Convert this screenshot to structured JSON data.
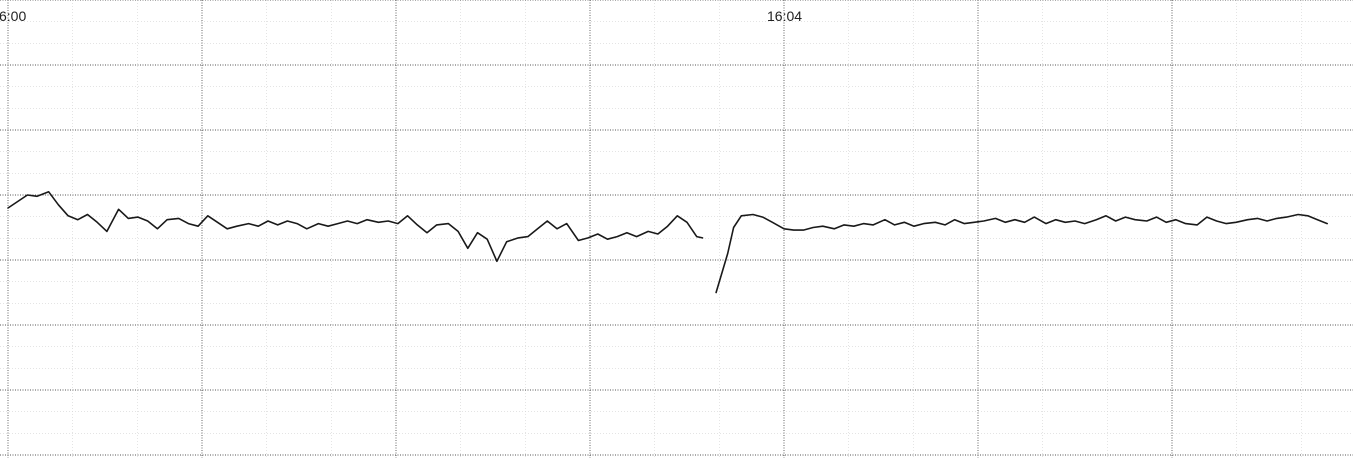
{
  "chart_data": {
    "type": "line",
    "time_labels": [
      {
        "text": "6:00",
        "minute": 0
      },
      {
        "text": "16:04",
        "minute": 4
      }
    ],
    "xlim": [
      0,
      7
    ],
    "ylim": [
      0,
      7
    ],
    "grid": true,
    "line_color": "#1a1a1a",
    "segments": [
      [
        [
          0.0,
          3.8
        ],
        [
          0.05,
          3.9
        ],
        [
          0.1,
          4.0
        ],
        [
          0.15,
          3.98
        ],
        [
          0.21,
          4.05
        ],
        [
          0.26,
          3.85
        ],
        [
          0.31,
          3.68
        ],
        [
          0.36,
          3.62
        ],
        [
          0.41,
          3.7
        ],
        [
          0.46,
          3.58
        ],
        [
          0.51,
          3.44
        ],
        [
          0.57,
          3.78
        ],
        [
          0.62,
          3.64
        ],
        [
          0.67,
          3.66
        ],
        [
          0.72,
          3.6
        ],
        [
          0.77,
          3.48
        ],
        [
          0.82,
          3.62
        ],
        [
          0.88,
          3.64
        ],
        [
          0.93,
          3.56
        ],
        [
          0.98,
          3.52
        ],
        [
          1.03,
          3.68
        ],
        [
          1.08,
          3.58
        ],
        [
          1.13,
          3.48
        ],
        [
          1.18,
          3.52
        ],
        [
          1.24,
          3.56
        ],
        [
          1.29,
          3.52
        ],
        [
          1.34,
          3.6
        ],
        [
          1.39,
          3.54
        ],
        [
          1.44,
          3.6
        ],
        [
          1.49,
          3.56
        ],
        [
          1.54,
          3.48
        ],
        [
          1.6,
          3.56
        ],
        [
          1.65,
          3.52
        ],
        [
          1.7,
          3.56
        ],
        [
          1.75,
          3.6
        ],
        [
          1.8,
          3.56
        ],
        [
          1.85,
          3.62
        ],
        [
          1.91,
          3.58
        ],
        [
          1.96,
          3.6
        ],
        [
          2.01,
          3.56
        ],
        [
          2.06,
          3.68
        ],
        [
          2.11,
          3.54
        ],
        [
          2.16,
          3.42
        ],
        [
          2.21,
          3.54
        ],
        [
          2.27,
          3.56
        ],
        [
          2.32,
          3.44
        ],
        [
          2.37,
          3.18
        ],
        [
          2.42,
          3.42
        ],
        [
          2.47,
          3.32
        ],
        [
          2.52,
          2.98
        ],
        [
          2.57,
          3.28
        ],
        [
          2.63,
          3.34
        ],
        [
          2.68,
          3.36
        ],
        [
          2.73,
          3.48
        ],
        [
          2.78,
          3.6
        ],
        [
          2.83,
          3.48
        ],
        [
          2.88,
          3.56
        ],
        [
          2.94,
          3.3
        ],
        [
          2.99,
          3.34
        ],
        [
          3.04,
          3.4
        ],
        [
          3.09,
          3.32
        ],
        [
          3.14,
          3.36
        ],
        [
          3.19,
          3.42
        ],
        [
          3.24,
          3.36
        ],
        [
          3.3,
          3.44
        ],
        [
          3.35,
          3.4
        ],
        [
          3.4,
          3.52
        ],
        [
          3.45,
          3.68
        ],
        [
          3.5,
          3.58
        ],
        [
          3.55,
          3.36
        ],
        [
          3.58,
          3.34
        ]
      ],
      [
        [
          3.65,
          2.5
        ],
        [
          3.68,
          2.8
        ],
        [
          3.71,
          3.1
        ],
        [
          3.74,
          3.5
        ],
        [
          3.78,
          3.68
        ],
        [
          3.84,
          3.7
        ],
        [
          3.89,
          3.66
        ],
        [
          3.94,
          3.58
        ],
        [
          4.0,
          3.48
        ],
        [
          4.05,
          3.46
        ],
        [
          4.1,
          3.46
        ],
        [
          4.15,
          3.5
        ],
        [
          4.2,
          3.52
        ],
        [
          4.26,
          3.48
        ],
        [
          4.31,
          3.54
        ],
        [
          4.36,
          3.52
        ],
        [
          4.41,
          3.56
        ],
        [
          4.46,
          3.54
        ],
        [
          4.52,
          3.62
        ],
        [
          4.57,
          3.54
        ],
        [
          4.62,
          3.58
        ],
        [
          4.67,
          3.52
        ],
        [
          4.72,
          3.56
        ],
        [
          4.78,
          3.58
        ],
        [
          4.83,
          3.54
        ],
        [
          4.88,
          3.62
        ],
        [
          4.93,
          3.56
        ],
        [
          4.98,
          3.58
        ],
        [
          5.03,
          3.6
        ],
        [
          5.09,
          3.64
        ],
        [
          5.14,
          3.58
        ],
        [
          5.19,
          3.62
        ],
        [
          5.24,
          3.58
        ],
        [
          5.29,
          3.66
        ],
        [
          5.35,
          3.56
        ],
        [
          5.4,
          3.62
        ],
        [
          5.45,
          3.58
        ],
        [
          5.5,
          3.6
        ],
        [
          5.55,
          3.56
        ],
        [
          5.61,
          3.62
        ],
        [
          5.66,
          3.68
        ],
        [
          5.71,
          3.6
        ],
        [
          5.76,
          3.66
        ],
        [
          5.81,
          3.62
        ],
        [
          5.87,
          3.6
        ],
        [
          5.92,
          3.66
        ],
        [
          5.97,
          3.58
        ],
        [
          6.02,
          3.62
        ],
        [
          6.07,
          3.56
        ],
        [
          6.13,
          3.54
        ],
        [
          6.18,
          3.66
        ],
        [
          6.23,
          3.6
        ],
        [
          6.28,
          3.56
        ],
        [
          6.33,
          3.58
        ],
        [
          6.39,
          3.62
        ],
        [
          6.44,
          3.64
        ],
        [
          6.49,
          3.6
        ],
        [
          6.54,
          3.64
        ],
        [
          6.59,
          3.66
        ],
        [
          6.65,
          3.7
        ],
        [
          6.7,
          3.68
        ],
        [
          6.75,
          3.62
        ],
        [
          6.8,
          3.56
        ]
      ]
    ]
  }
}
